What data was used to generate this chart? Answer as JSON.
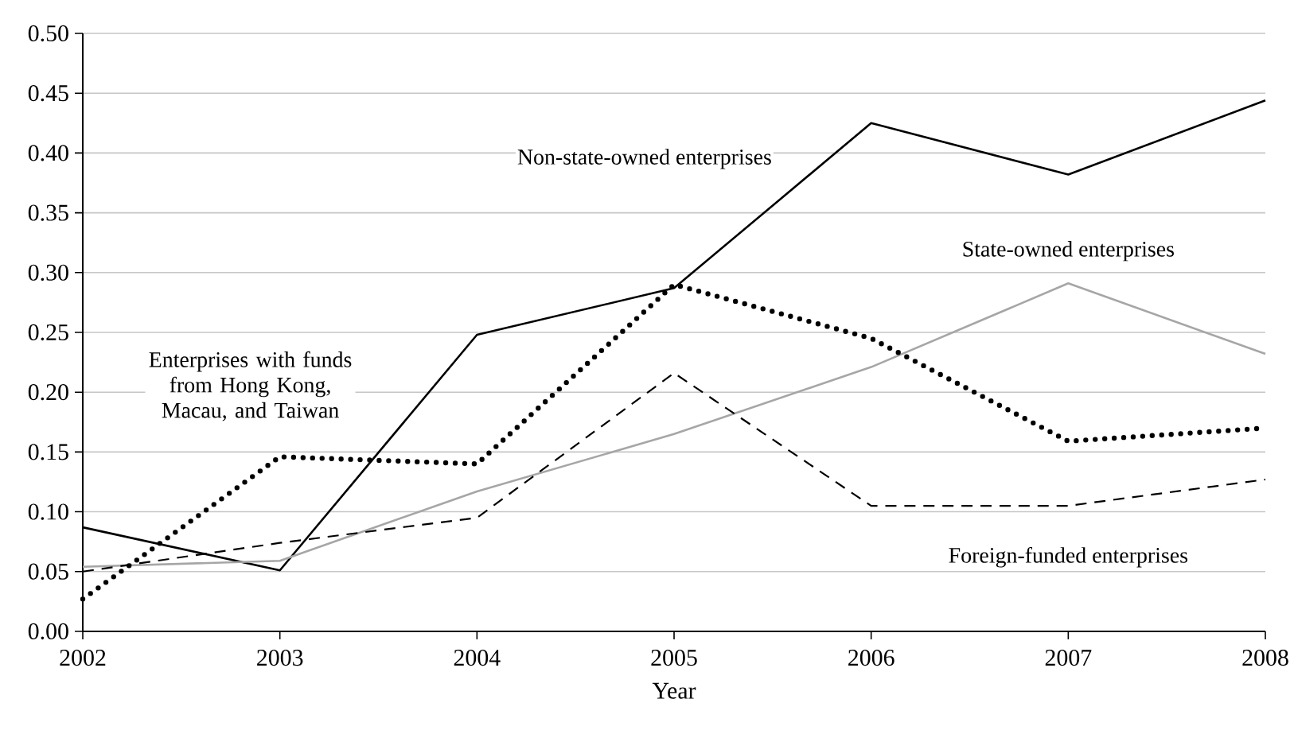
{
  "chart_data": {
    "type": "line",
    "xlabel": "Year",
    "x": [
      2002,
      2003,
      2004,
      2005,
      2006,
      2007,
      2008
    ],
    "xlim": [
      2002,
      2008
    ],
    "xticks": [
      2002,
      2003,
      2004,
      2005,
      2006,
      2007,
      2008
    ],
    "ylim": [
      0,
      0.5
    ],
    "yticks": [
      {
        "value": 0,
        "label": "0.00"
      },
      {
        "value": 0.05,
        "label": "0.05"
      },
      {
        "value": 0.1,
        "label": "0.10"
      },
      {
        "value": 0.15,
        "label": "0.15"
      },
      {
        "value": 0.2,
        "label": "0.20"
      },
      {
        "value": 0.25,
        "label": "0.25"
      },
      {
        "value": 0.3,
        "label": "0.30"
      },
      {
        "value": 0.35,
        "label": "0.35"
      },
      {
        "value": 0.4,
        "label": "0.40"
      },
      {
        "value": 0.45,
        "label": "0.45"
      },
      {
        "value": 0.5,
        "label": "0.50"
      }
    ],
    "grid": "y",
    "series": [
      {
        "name": "Non-state-owned enterprises",
        "color": "#000000",
        "line_style": "solid",
        "values": [
          0.087,
          0.051,
          0.248,
          0.287,
          0.425,
          0.382,
          0.444
        ]
      },
      {
        "name": "State-owned enterprises",
        "color": "#a6a6a6",
        "line_style": "solid",
        "values": [
          0.054,
          0.059,
          0.117,
          0.165,
          0.221,
          0.291,
          0.232
        ]
      },
      {
        "name": "Enterprises with funds from Hong Kong, Macau, and Taiwan",
        "color": "#000000",
        "line_style": "dotted",
        "values": [
          0.027,
          0.146,
          0.14,
          0.29,
          0.245,
          0.159,
          0.17
        ]
      },
      {
        "name": "Foreign-funded enterprises",
        "color": "#000000",
        "line_style": "dashed",
        "values": [
          0.05,
          0.074,
          0.095,
          0.216,
          0.105,
          0.105,
          0.127
        ]
      }
    ]
  }
}
